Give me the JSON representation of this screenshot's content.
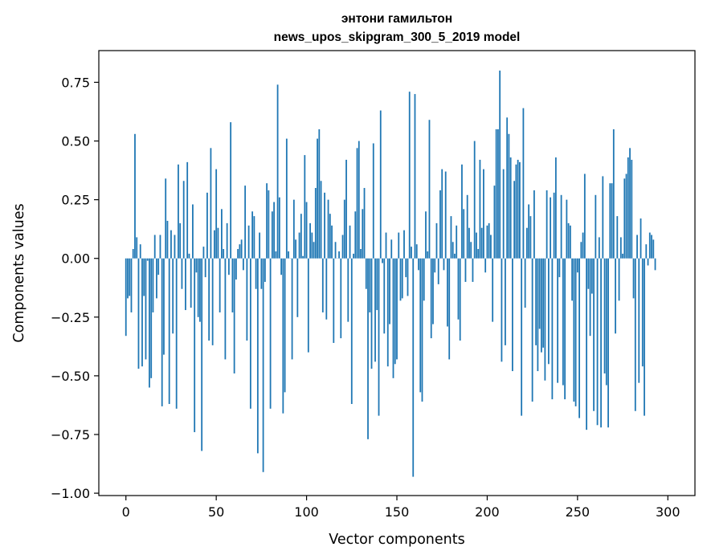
{
  "chart_data": {
    "type": "bar",
    "title_lines": [
      "энтони гамильтон",
      "news_upos_skipgram_300_5_2019 model"
    ],
    "xlabel": "Vector components",
    "ylabel": "Components values",
    "xlim": [
      -15,
      315
    ],
    "ylim": [
      -1.01,
      0.885
    ],
    "xticks": [
      0,
      50,
      100,
      150,
      200,
      250,
      300
    ],
    "xtick_labels": [
      "0",
      "50",
      "100",
      "150",
      "200",
      "250",
      "300"
    ],
    "yticks": [
      -1.0,
      -0.75,
      -0.5,
      -0.25,
      0.0,
      0.25,
      0.5,
      0.75
    ],
    "ytick_labels": [
      "−1.00",
      "−0.75",
      "−0.50",
      "−0.25",
      "0.00",
      "0.25",
      "0.50",
      "0.75"
    ],
    "bar_color": "#1f77b4",
    "series": [
      {
        "name": "components",
        "values": [
          -0.33,
          -0.17,
          -0.16,
          -0.23,
          0.04,
          0.53,
          0.09,
          -0.47,
          0.06,
          -0.46,
          -0.16,
          -0.43,
          -0.01,
          -0.55,
          -0.51,
          -0.23,
          0.1,
          -0.17,
          -0.07,
          0.1,
          -0.63,
          -0.41,
          0.34,
          0.16,
          -0.62,
          0.12,
          -0.32,
          0.1,
          -0.64,
          0.4,
          0.15,
          -0.13,
          0.33,
          -0.22,
          0.41,
          0.02,
          -0.21,
          0.23,
          -0.74,
          -0.06,
          -0.25,
          -0.27,
          -0.82,
          0.05,
          -0.08,
          0.28,
          -0.35,
          0.47,
          -0.37,
          0.12,
          0.38,
          0.13,
          -0.23,
          0.21,
          0.04,
          -0.43,
          0.15,
          -0.07,
          0.58,
          -0.23,
          -0.49,
          -0.09,
          0.04,
          0.06,
          0.08,
          -0.05,
          0.31,
          -0.35,
          0.14,
          -0.64,
          0.2,
          0.18,
          -0.13,
          -0.83,
          0.11,
          -0.13,
          -0.91,
          -0.1,
          0.32,
          0.29,
          -0.64,
          0.2,
          0.24,
          0.03,
          0.74,
          0.26,
          -0.07,
          -0.66,
          -0.57,
          0.51,
          0.03,
          0.0,
          -0.43,
          0.25,
          0.08,
          -0.25,
          0.11,
          0.19,
          0.01,
          0.44,
          0.24,
          -0.4,
          0.15,
          0.11,
          0.07,
          0.3,
          0.51,
          0.55,
          0.33,
          -0.23,
          0.28,
          -0.26,
          0.25,
          0.19,
          0.14,
          -0.36,
          0.07,
          0.0,
          0.03,
          -0.34,
          0.1,
          0.25,
          0.42,
          -0.27,
          0.14,
          -0.62,
          0.02,
          0.2,
          0.47,
          0.5,
          0.04,
          0.21,
          0.3,
          -0.13,
          -0.77,
          -0.23,
          -0.47,
          0.49,
          -0.44,
          -0.22,
          -0.67,
          0.63,
          -0.02,
          -0.32,
          0.11,
          -0.46,
          -0.28,
          0.08,
          -0.51,
          -0.45,
          -0.43,
          0.11,
          -0.18,
          -0.17,
          0.12,
          -0.08,
          -0.16,
          0.71,
          0.05,
          -0.93,
          0.7,
          0.06,
          -0.05,
          -0.57,
          -0.61,
          -0.18,
          0.2,
          0.03,
          0.59,
          -0.34,
          -0.28,
          -0.06,
          0.15,
          -0.11,
          0.29,
          0.38,
          -0.05,
          0.37,
          -0.29,
          -0.43,
          0.18,
          0.07,
          0.02,
          0.14,
          -0.26,
          -0.35,
          0.4,
          0.21,
          -0.1,
          0.27,
          0.13,
          0.07,
          -0.1,
          0.5,
          0.11,
          0.04,
          0.42,
          0.13,
          0.38,
          -0.06,
          0.14,
          0.15,
          0.1,
          -0.27,
          0.31,
          0.55,
          0.55,
          0.8,
          -0.44,
          0.38,
          -0.37,
          0.6,
          0.53,
          0.43,
          -0.48,
          0.33,
          0.4,
          0.42,
          0.41,
          -0.67,
          0.64,
          -0.21,
          0.13,
          0.23,
          0.18,
          -0.61,
          0.29,
          -0.37,
          -0.48,
          -0.3,
          -0.4,
          -0.38,
          -0.52,
          0.29,
          -0.45,
          0.26,
          -0.6,
          0.28,
          0.43,
          -0.53,
          -0.08,
          0.27,
          -0.54,
          -0.6,
          0.25,
          0.15,
          0.14,
          -0.18,
          -0.61,
          -0.63,
          -0.06,
          -0.68,
          0.07,
          0.11,
          0.36,
          -0.73,
          -0.13,
          -0.33,
          -0.15,
          -0.65,
          0.27,
          -0.71,
          0.09,
          -0.72,
          0.35,
          -0.49,
          -0.54,
          -0.72,
          0.32,
          0.32,
          0.55,
          -0.32,
          0.18,
          -0.18,
          0.09,
          0.02,
          0.34,
          0.36,
          0.43,
          0.47,
          0.42,
          -0.17,
          -0.65,
          0.1,
          -0.53,
          0.17,
          -0.46,
          -0.67,
          0.06,
          -0.03,
          0.11,
          0.1,
          0.08,
          -0.05
        ]
      }
    ]
  }
}
